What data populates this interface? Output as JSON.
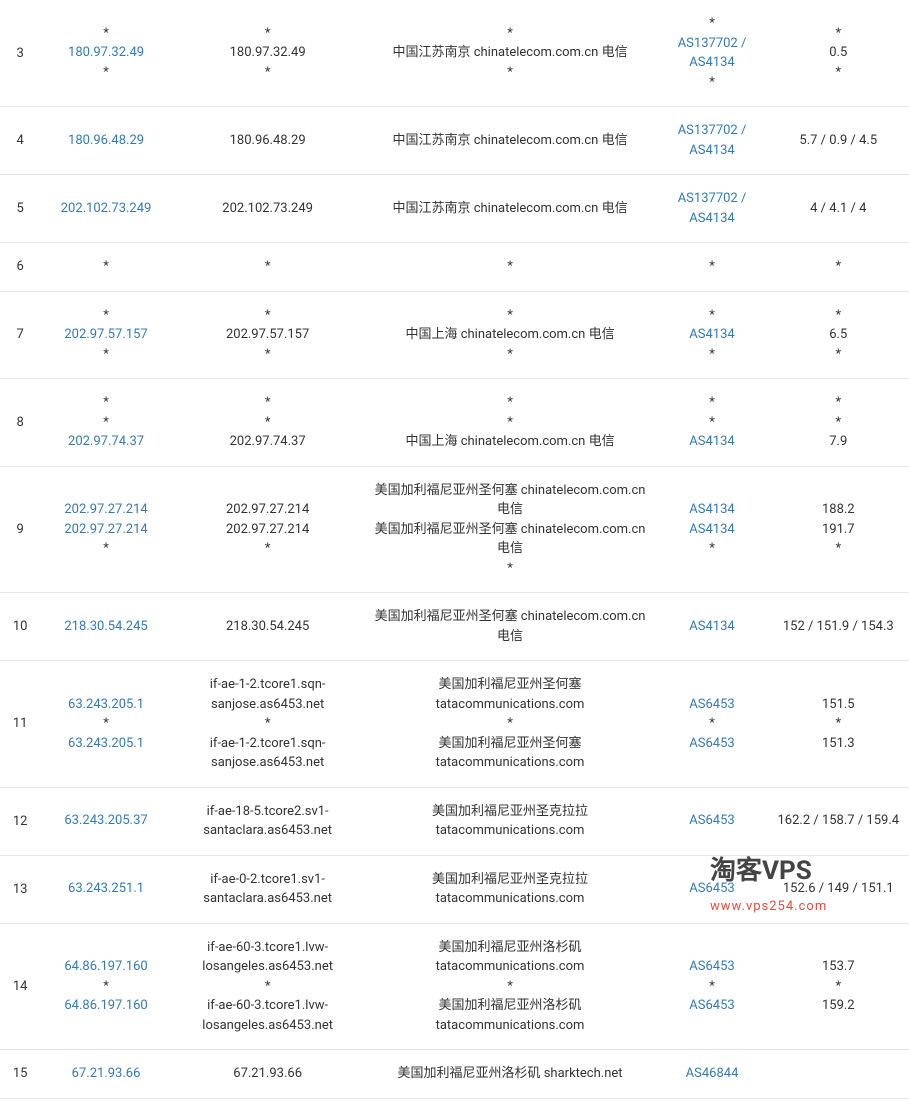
{
  "watermark": {
    "main": "淘客VPS",
    "sub": "www.vps254.com"
  },
  "table": {
    "rows": [
      {
        "hop": "3",
        "ip": [
          "*",
          {
            "link": "180.97.32.49"
          },
          "*"
        ],
        "host": [
          "*",
          "180.97.32.49",
          "*"
        ],
        "loc": [
          "*",
          "中国江苏南京 chinatelecom.com.cn 电信",
          "*"
        ],
        "as": [
          "*",
          {
            "link": "AS137702 / AS4134"
          },
          "*"
        ],
        "rt": [
          "*",
          "0.5",
          "*"
        ]
      },
      {
        "hop": "4",
        "ip": [
          {
            "link": "180.96.48.29"
          }
        ],
        "host": [
          "180.96.48.29"
        ],
        "loc": [
          "中国江苏南京 chinatelecom.com.cn 电信"
        ],
        "as": [
          {
            "link": "AS137702 / AS4134"
          }
        ],
        "rt": [
          "5.7 / 0.9 / 4.5"
        ]
      },
      {
        "hop": "5",
        "ip": [
          {
            "link": "202.102.73.249"
          }
        ],
        "host": [
          "202.102.73.249"
        ],
        "loc": [
          "中国江苏南京 chinatelecom.com.cn 电信"
        ],
        "as": [
          {
            "link": "AS137702 / AS4134"
          }
        ],
        "rt": [
          "4 / 4.1 / 4"
        ]
      },
      {
        "hop": "6",
        "ip": [
          "*"
        ],
        "host": [
          "*"
        ],
        "loc": [
          "*"
        ],
        "as": [
          "*"
        ],
        "rt": [
          "*"
        ]
      },
      {
        "hop": "7",
        "ip": [
          "*",
          {
            "link": "202.97.57.157"
          },
          "*"
        ],
        "host": [
          "*",
          "202.97.57.157",
          "*"
        ],
        "loc": [
          "*",
          "中国上海 chinatelecom.com.cn 电信",
          "*"
        ],
        "as": [
          "*",
          {
            "link": "AS4134"
          },
          "*"
        ],
        "rt": [
          "*",
          "6.5",
          "*"
        ]
      },
      {
        "hop": "8",
        "ip": [
          "*",
          "*",
          {
            "link": "202.97.74.37"
          }
        ],
        "host": [
          "*",
          "*",
          "202.97.74.37"
        ],
        "loc": [
          "*",
          "*",
          "中国上海 chinatelecom.com.cn 电信"
        ],
        "as": [
          "*",
          "*",
          {
            "link": "AS4134"
          }
        ],
        "rt": [
          "*",
          "*",
          "7.9"
        ]
      },
      {
        "hop": "9",
        "ip": [
          {
            "link": "202.97.27.214"
          },
          {
            "link": "202.97.27.214"
          },
          "*"
        ],
        "host": [
          "202.97.27.214",
          "202.97.27.214",
          "*"
        ],
        "loc": [
          "美国加利福尼亚州圣何塞 chinatelecom.com.cn 电信",
          "美国加利福尼亚州圣何塞 chinatelecom.com.cn 电信",
          "*"
        ],
        "as": [
          {
            "link": "AS4134"
          },
          {
            "link": "AS4134"
          },
          "*"
        ],
        "rt": [
          "188.2",
          "191.7",
          "*"
        ]
      },
      {
        "hop": "10",
        "ip": [
          {
            "link": "218.30.54.245"
          }
        ],
        "host": [
          "218.30.54.245"
        ],
        "loc": [
          "美国加利福尼亚州圣何塞 chinatelecom.com.cn 电信"
        ],
        "as": [
          {
            "link": "AS4134"
          }
        ],
        "rt": [
          "152 / 151.9 / 154.3"
        ]
      },
      {
        "hop": "11",
        "ip": [
          {
            "link": "63.243.205.1"
          },
          "*",
          {
            "link": "63.243.205.1"
          }
        ],
        "host": [
          "if-ae-1-2.tcore1.sqn-sanjose.as6453.net",
          "*",
          "if-ae-1-2.tcore1.sqn-sanjose.as6453.net"
        ],
        "loc": [
          "美国加利福尼亚州圣何塞 tatacommunications.com",
          "*",
          "美国加利福尼亚州圣何塞 tatacommunications.com"
        ],
        "as": [
          {
            "link": "AS6453"
          },
          "*",
          {
            "link": "AS6453"
          }
        ],
        "rt": [
          "151.5",
          "*",
          "151.3"
        ]
      },
      {
        "hop": "12",
        "ip": [
          {
            "link": "63.243.205.37"
          }
        ],
        "host": [
          "if-ae-18-5.tcore2.sv1-santaclara.as6453.net"
        ],
        "loc": [
          "美国加利福尼亚州圣克拉拉 tatacommunications.com"
        ],
        "as": [
          {
            "link": "AS6453"
          }
        ],
        "rt": [
          "162.2 / 158.7 / 159.4"
        ]
      },
      {
        "hop": "13",
        "ip": [
          {
            "link": "63.243.251.1"
          }
        ],
        "host": [
          "if-ae-0-2.tcore1.sv1-santaclara.as6453.net"
        ],
        "loc": [
          "美国加利福尼亚州圣克拉拉 tatacommunications.com"
        ],
        "as": [
          {
            "link": "AS6453"
          }
        ],
        "rt": [
          "152.6 / 149 / 151.1"
        ]
      },
      {
        "hop": "14",
        "ip": [
          {
            "link": "64.86.197.160"
          },
          "*",
          {
            "link": "64.86.197.160"
          }
        ],
        "host": [
          "if-ae-60-3.tcore1.lvw-losangeles.as6453.net",
          "*",
          "if-ae-60-3.tcore1.lvw-losangeles.as6453.net"
        ],
        "loc": [
          "美国加利福尼亚州洛杉矶 tatacommunications.com",
          "*",
          "美国加利福尼亚州洛杉矶 tatacommunications.com"
        ],
        "as": [
          {
            "link": "AS6453"
          },
          "*",
          {
            "link": "AS6453"
          }
        ],
        "rt": [
          "153.7",
          "*",
          "159.2"
        ]
      },
      {
        "hop": "15",
        "ip": [
          {
            "link": "67.21.93.66"
          }
        ],
        "host": [
          "67.21.93.66"
        ],
        "loc": [
          "美国加利福尼亚州洛杉矶 sharktech.net"
        ],
        "as": [
          {
            "link": "AS46844"
          }
        ],
        "rt": [
          ""
        ]
      }
    ]
  }
}
